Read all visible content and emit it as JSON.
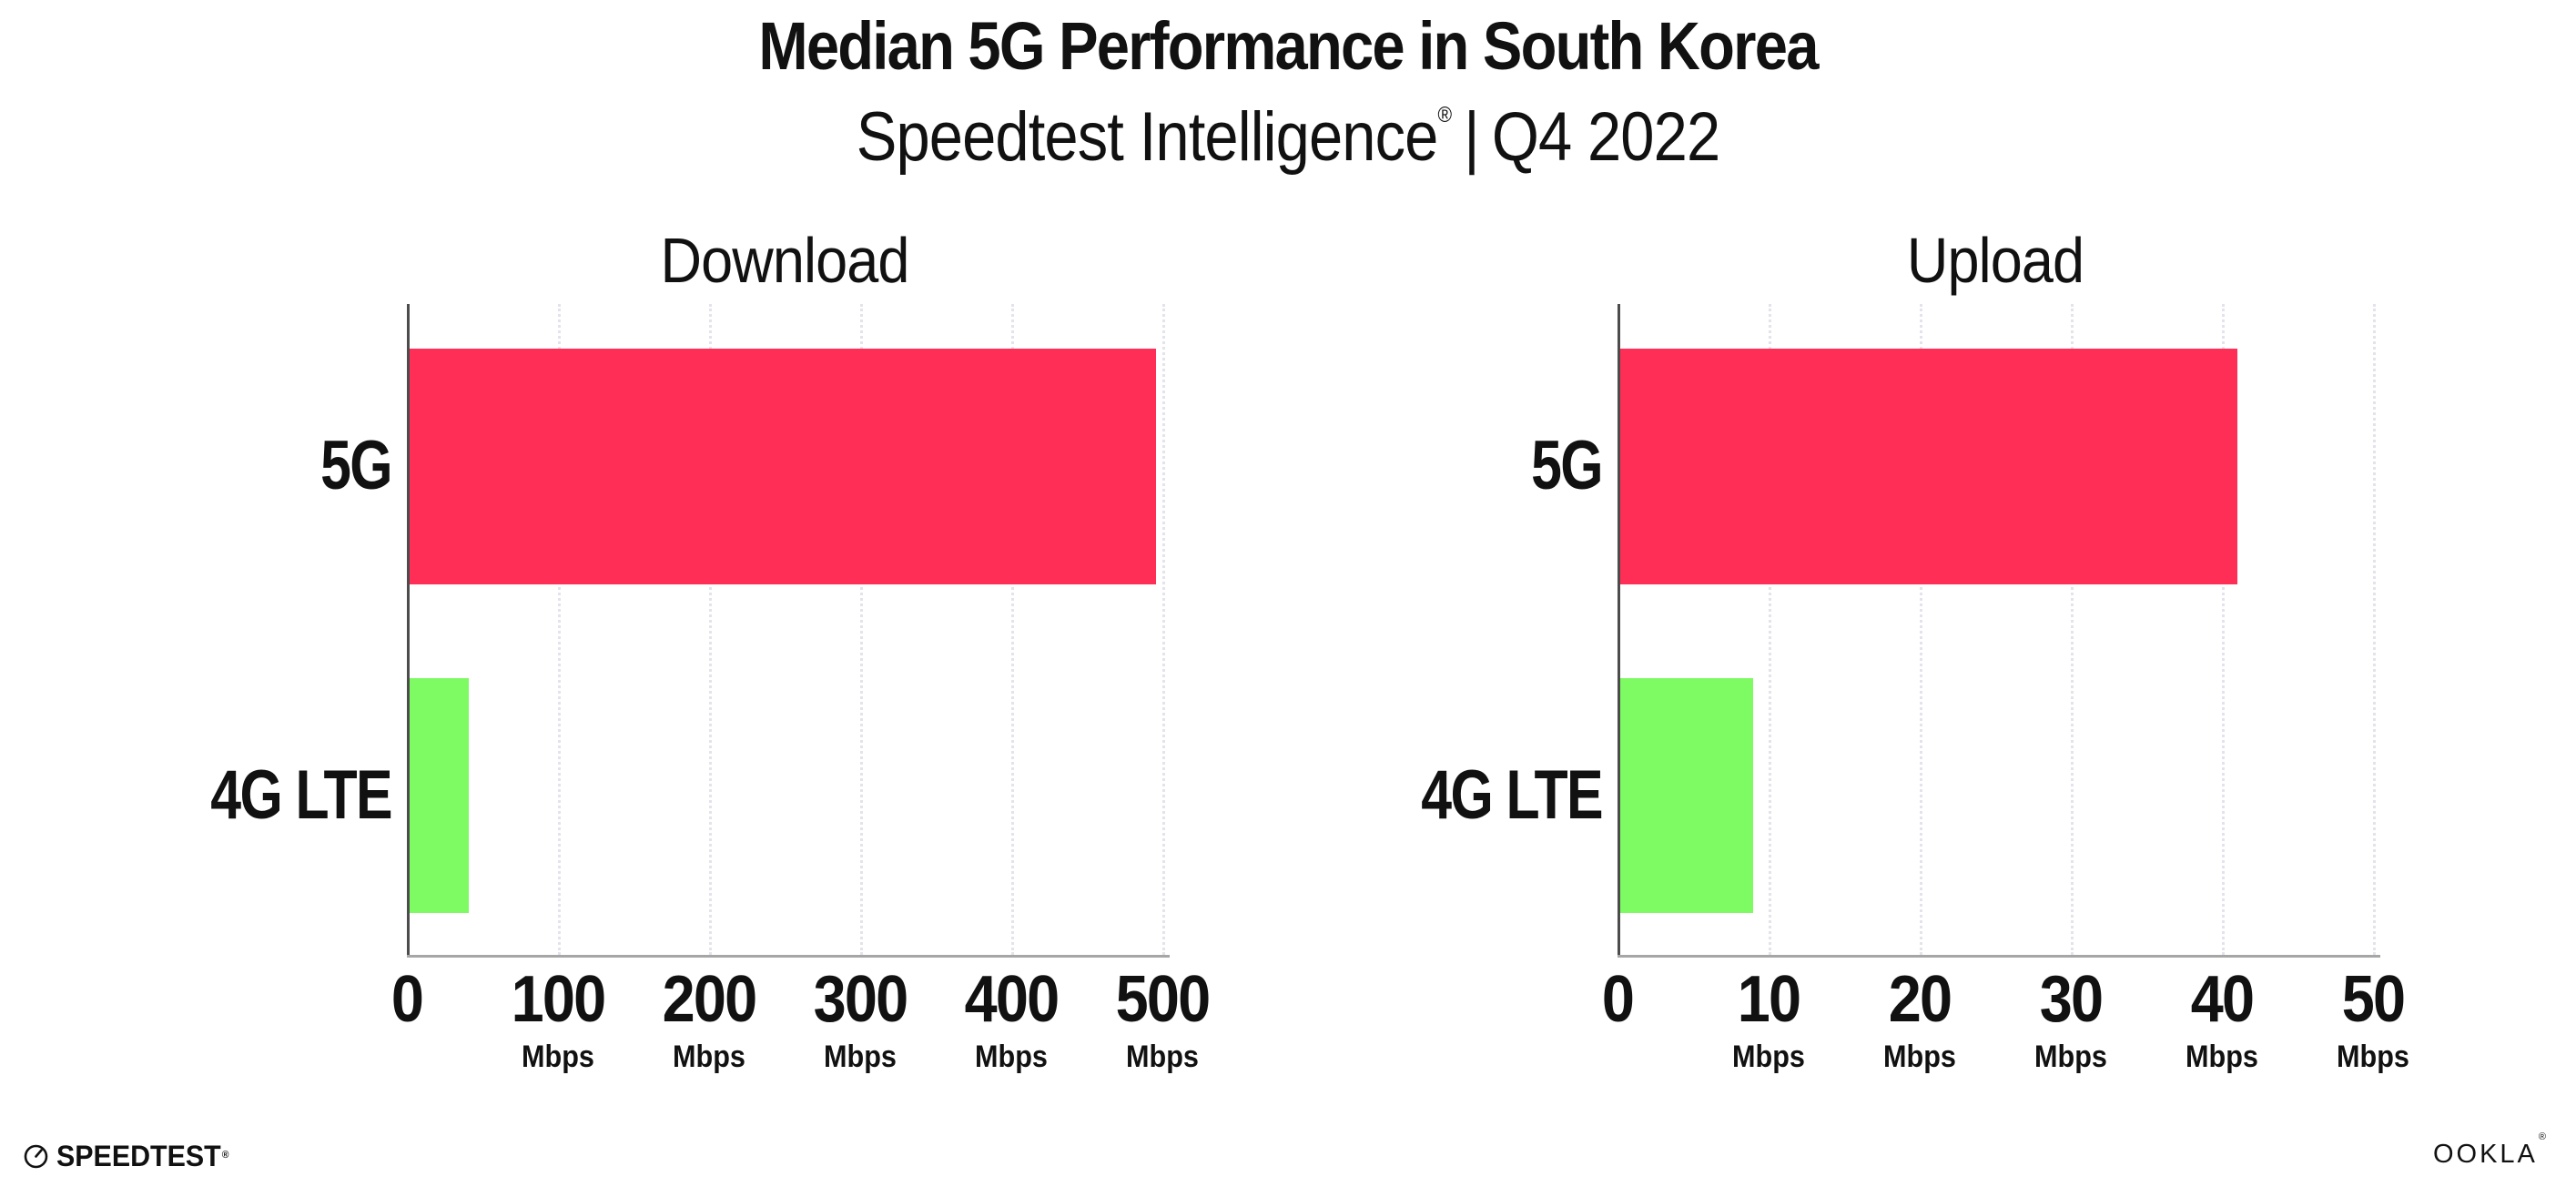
{
  "header": {
    "title": "Median 5G Performance in South Korea",
    "subtitle": {
      "brand": "Speedtest Intelligence",
      "registered_mark": "®",
      "separator": "|",
      "period": "Q4 2022"
    }
  },
  "chart_data": [
    {
      "type": "bar",
      "orientation": "horizontal",
      "title": "Download",
      "categories": [
        "5G",
        "4G LTE"
      ],
      "values": [
        496,
        41
      ],
      "unit": "Mbps",
      "xlim": [
        0,
        500
      ],
      "ticks": [
        0,
        100,
        200,
        300,
        400,
        500
      ],
      "tick_unit_label": "Mbps",
      "bar_colors": [
        "#ff2e56",
        "#7efb63"
      ],
      "grid": "dotted vertical gridlines at each tick",
      "legend": "none"
    },
    {
      "type": "bar",
      "orientation": "horizontal",
      "title": "Upload",
      "categories": [
        "5G",
        "4G LTE"
      ],
      "values": [
        41,
        9
      ],
      "unit": "Mbps",
      "xlim": [
        0,
        50
      ],
      "ticks": [
        0,
        10,
        20,
        30,
        40,
        50
      ],
      "tick_unit_label": "Mbps",
      "bar_colors": [
        "#ff2e56",
        "#7efb63"
      ],
      "grid": "dotted vertical gridlines at each tick",
      "legend": "none"
    }
  ],
  "footer": {
    "speedtest_wordmark": "SPEEDTEST",
    "speedtest_registered_mark": "®",
    "ookla_wordmark": "OOKLA",
    "ookla_registered_mark": "®"
  },
  "colors": {
    "background": "#ffffff",
    "text": "#111111",
    "bar_5g": "#ff2e56",
    "bar_4g_lte": "#7efb63",
    "y_axis_line": "#4c4c4c",
    "x_axis_line": "#a6a6a6",
    "gridline": "#e3e3eb"
  }
}
